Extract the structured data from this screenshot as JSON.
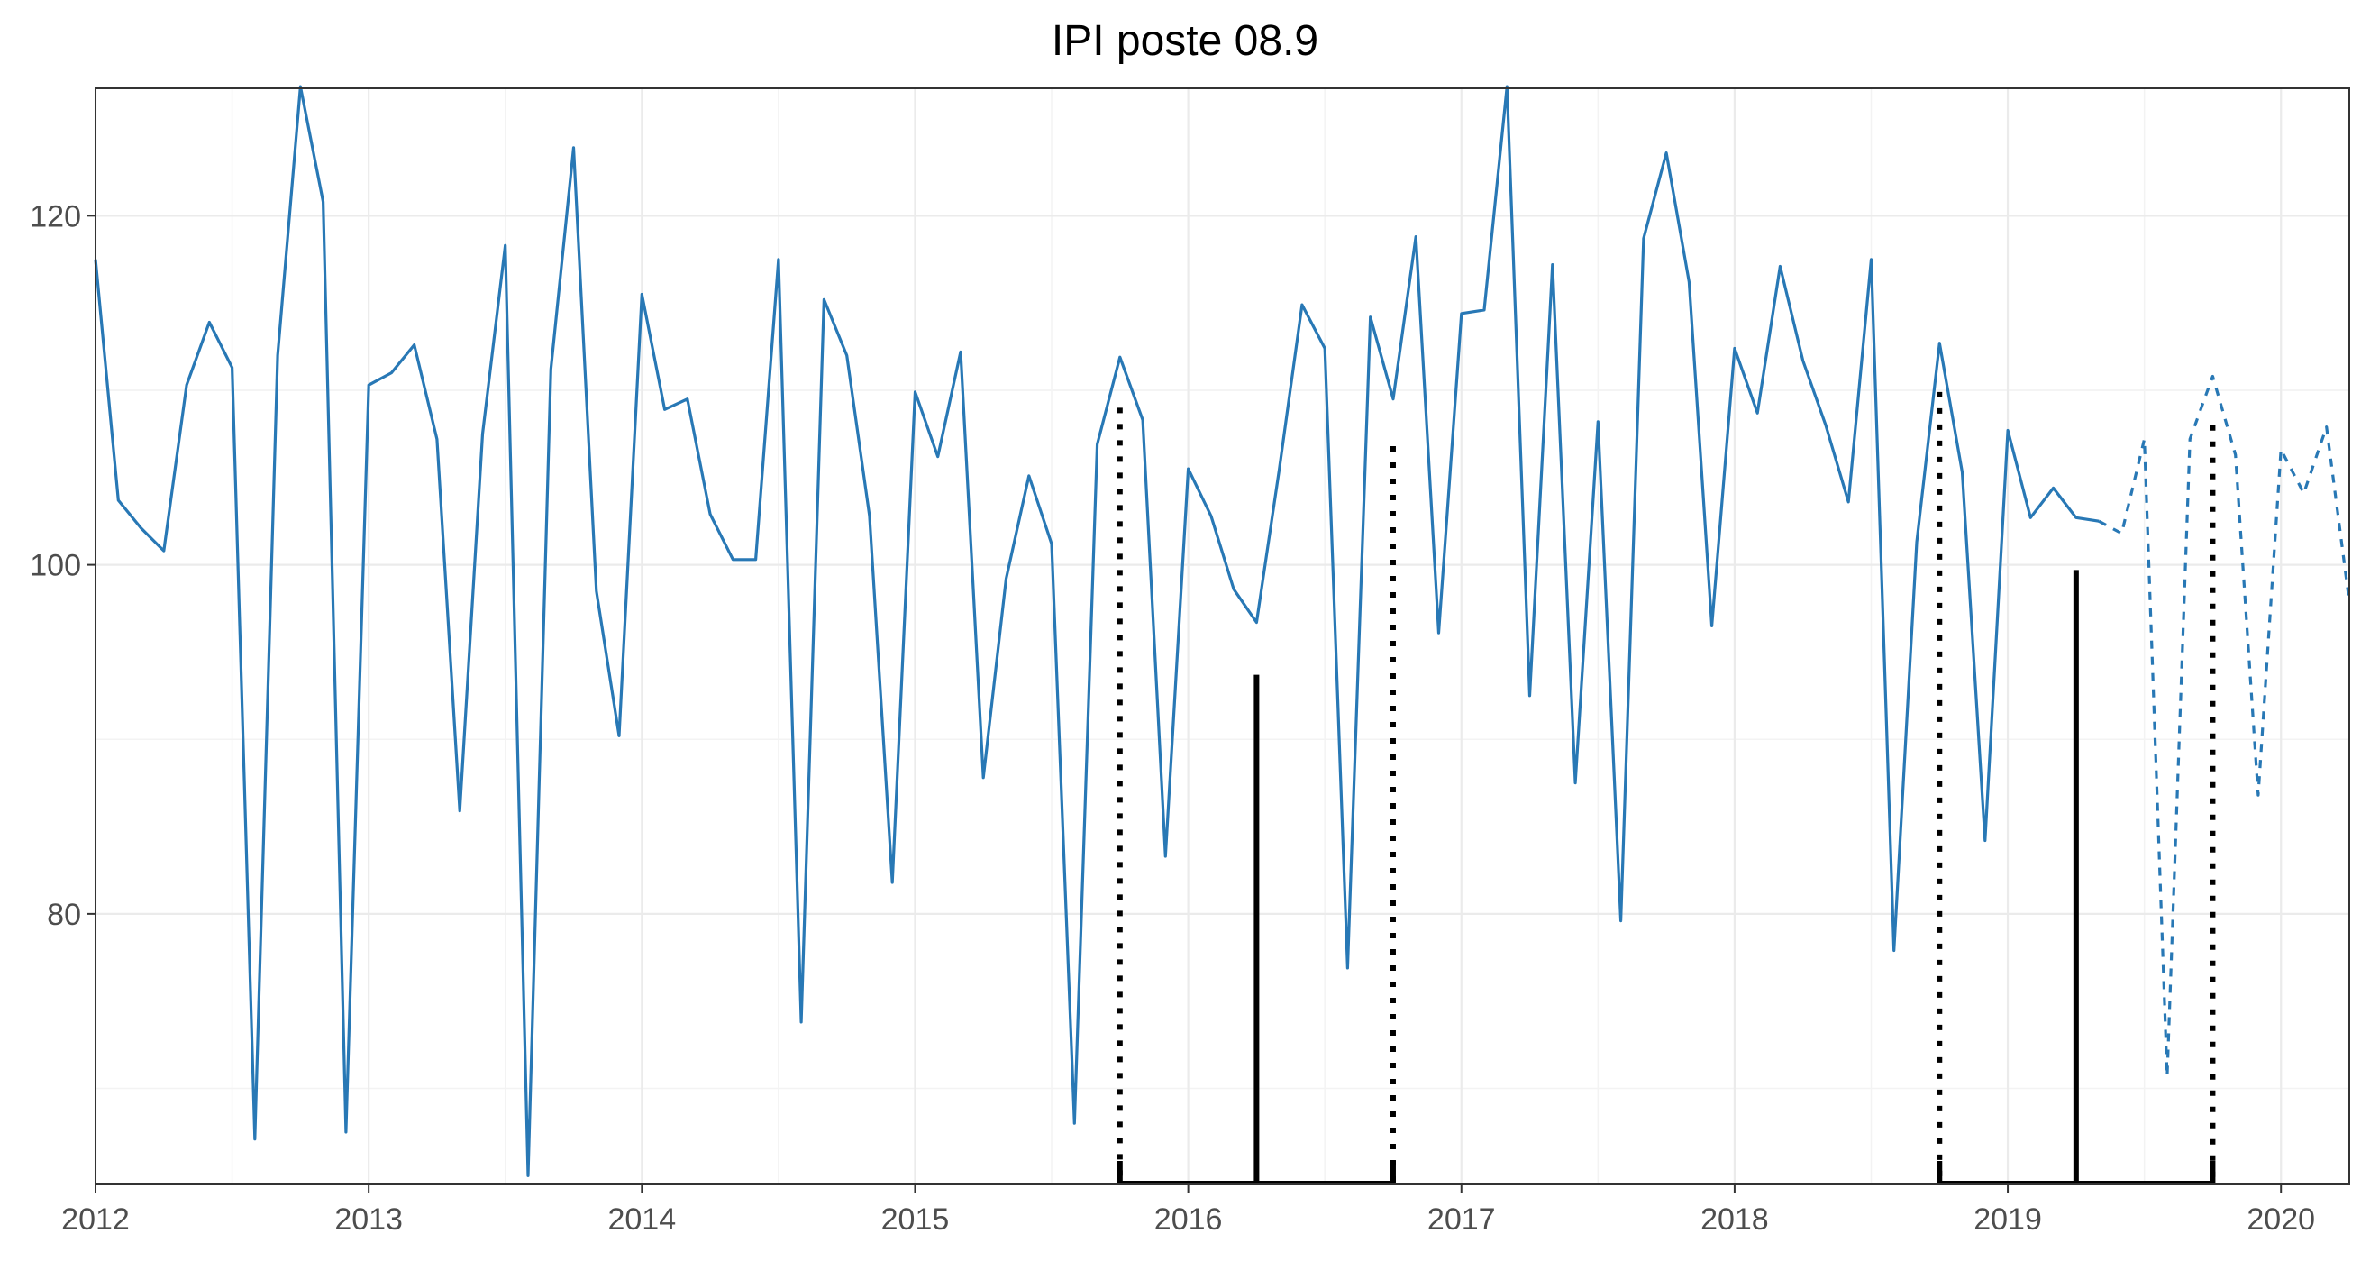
{
  "chart_data": {
    "type": "line",
    "title": "IPI poste 08.9",
    "xlabel": "",
    "ylabel": "",
    "xlim": [
      2012.0,
      2020.25
    ],
    "ylim": [
      64.5,
      127.3
    ],
    "x_ticks": [
      {
        "value": 2012,
        "label": "2012"
      },
      {
        "value": 2013,
        "label": "2013"
      },
      {
        "value": 2014,
        "label": "2014"
      },
      {
        "value": 2015,
        "label": "2015"
      },
      {
        "value": 2016,
        "label": "2016"
      },
      {
        "value": 2017,
        "label": "2017"
      },
      {
        "value": 2018,
        "label": "2018"
      },
      {
        "value": 2019,
        "label": "2019"
      },
      {
        "value": 2020,
        "label": "2020"
      }
    ],
    "y_ticks": [
      {
        "value": 80,
        "label": "80"
      },
      {
        "value": 100,
        "label": "100"
      },
      {
        "value": 120,
        "label": "120"
      }
    ],
    "grid": true,
    "colors": {
      "series": "#2878b5",
      "markers": "#000000",
      "grid": "#ebebeb",
      "frame": "#333333"
    },
    "series": [
      {
        "style": "solid",
        "start": "2012-01",
        "values": [
          117.5,
          103.7,
          102.1,
          100.8,
          110.3,
          113.9,
          111.3,
          67.1,
          112.0,
          127.4,
          120.8,
          67.5,
          110.3,
          111.0,
          112.6,
          107.2,
          85.9,
          107.5,
          118.3,
          65.0,
          111.2,
          123.9,
          98.5,
          90.2,
          115.5,
          108.9,
          109.5,
          102.9,
          100.3,
          100.3,
          117.5,
          73.8,
          115.2,
          112.0,
          102.8,
          81.8,
          109.9,
          106.2,
          112.2,
          87.8,
          99.2,
          105.1,
          101.2,
          68.0,
          106.9,
          111.9,
          108.3,
          83.3,
          105.5,
          102.8,
          98.6,
          96.7,
          105.5,
          114.9,
          112.4,
          76.9,
          114.2,
          109.5,
          118.8,
          96.1,
          114.4,
          114.6,
          127.4,
          92.5,
          117.2,
          87.5,
          108.2,
          79.6,
          118.7,
          123.6,
          116.2,
          96.5,
          112.4,
          108.7,
          117.1,
          111.7,
          108.0,
          103.6,
          117.5,
          77.9,
          101.3,
          112.7,
          105.3,
          84.2,
          107.7,
          102.7,
          104.4,
          102.7,
          102.5
        ]
      },
      {
        "style": "dashed",
        "start": "2019-05",
        "values": [
          102.5,
          101.8,
          107.2,
          70.7,
          107.2,
          110.8,
          106.3,
          86.8,
          106.6,
          104.1,
          107.9,
          97.9
        ]
      }
    ],
    "markers": [
      {
        "date": "2015-10",
        "style": "dotted",
        "y_top": 109.0
      },
      {
        "date": "2016-04",
        "style": "solid",
        "y_top": 93.7
      },
      {
        "date": "2016-10",
        "style": "dotted",
        "y_top": 106.8
      },
      {
        "date": "2018-10",
        "style": "dotted",
        "y_top": 109.9
      },
      {
        "date": "2019-04",
        "style": "solid",
        "y_top": 99.7
      },
      {
        "date": "2019-10",
        "style": "dotted",
        "y_top": 108.0
      }
    ],
    "marker_spans": [
      {
        "from": "2015-10",
        "to": "2016-10",
        "y": 64.5
      },
      {
        "from": "2018-10",
        "to": "2019-10",
        "y": 64.5
      }
    ]
  }
}
